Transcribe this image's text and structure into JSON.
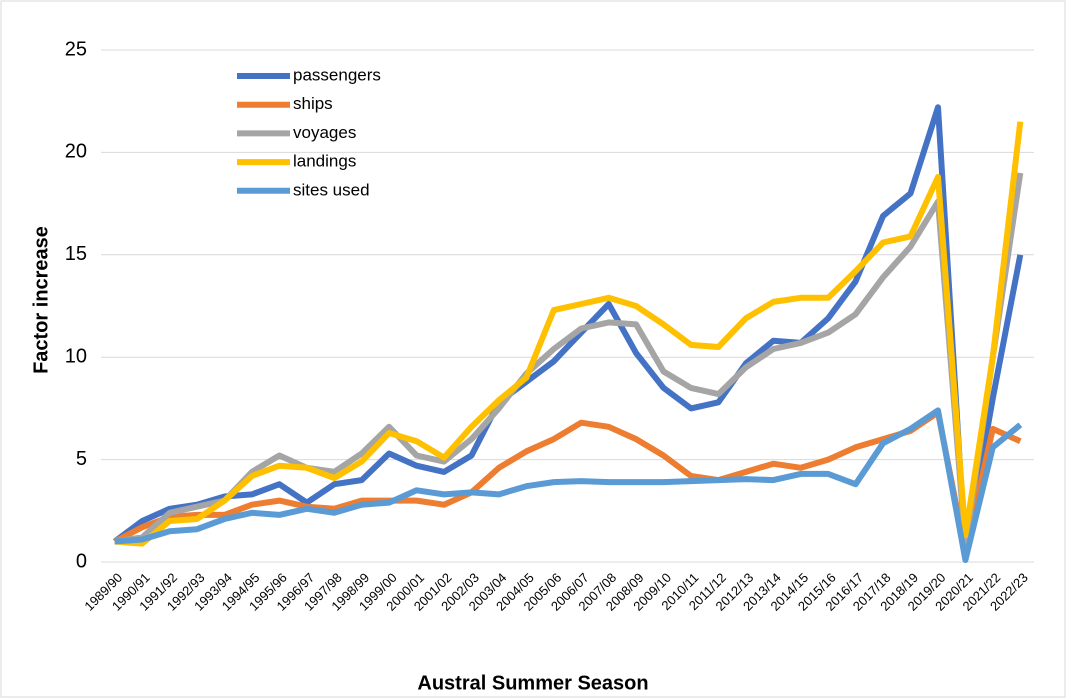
{
  "chart_data": {
    "type": "line",
    "x_label": "Austral Summer Season",
    "y_label": "Factor increase",
    "categories": [
      "1989/90",
      "1990/91",
      "1991/92",
      "1992/93",
      "1993/94",
      "1994/95",
      "1995/96",
      "1996/97",
      "1997/98",
      "1998/99",
      "1999/00",
      "2000/01",
      "2001/02",
      "2002/03",
      "2003/04",
      "2004/05",
      "2005/06",
      "2006/07",
      "2007/08",
      "2008/09",
      "2009/10",
      "2010/11",
      "2011/12",
      "2012/13",
      "2013/14",
      "2014/15",
      "2015/16",
      "2016/17",
      "2017/18",
      "2018/19",
      "2019/20",
      "2020/21",
      "2021/22",
      "2022/23"
    ],
    "series": [
      {
        "name": "passengers",
        "color": "#4472c4",
        "values": [
          1,
          2,
          2.6,
          2.8,
          3.2,
          3.3,
          3.8,
          2.9,
          3.8,
          4.0,
          5.3,
          4.7,
          4.4,
          5.2,
          7.8,
          8.8,
          9.8,
          11.2,
          12.6,
          10.2,
          8.5,
          7.5,
          7.8,
          9.7,
          10.8,
          10.7,
          11.9,
          13.7,
          16.9,
          18.0,
          22.2,
          0.4,
          8.0,
          15.0
        ]
      },
      {
        "name": "ships",
        "color": "#ed7d31",
        "values": [
          1,
          1.7,
          2.2,
          2.3,
          2.3,
          2.8,
          3.0,
          2.7,
          2.6,
          3.0,
          3.0,
          3.0,
          2.8,
          3.4,
          4.6,
          5.4,
          6.0,
          6.8,
          6.6,
          6.0,
          5.2,
          4.2,
          4.0,
          4.4,
          4.8,
          4.6,
          5.0,
          5.6,
          6.0,
          6.4,
          7.3,
          0.5,
          6.5,
          5.9
        ]
      },
      {
        "name": "voyages",
        "color": "#a5a5a5",
        "values": [
          1,
          1.2,
          2.4,
          2.7,
          3.0,
          4.4,
          5.2,
          4.6,
          4.4,
          5.3,
          6.6,
          5.2,
          4.9,
          6.0,
          7.5,
          9.2,
          10.4,
          11.4,
          11.7,
          11.6,
          9.3,
          8.5,
          8.2,
          9.5,
          10.4,
          10.7,
          11.2,
          12.1,
          13.9,
          15.4,
          17.6,
          0.8,
          10.0,
          19.0
        ]
      },
      {
        "name": "landings",
        "color": "#ffc000",
        "values": [
          1,
          0.9,
          2.0,
          2.1,
          3.0,
          4.2,
          4.7,
          4.6,
          4.1,
          4.9,
          6.3,
          5.9,
          5.1,
          6.6,
          7.9,
          9.0,
          12.3,
          12.6,
          12.9,
          12.5,
          11.6,
          10.6,
          10.5,
          11.9,
          12.7,
          12.9,
          12.9,
          14.2,
          15.6,
          15.9,
          18.8,
          1.3,
          10.0,
          21.5
        ]
      },
      {
        "name": "sites used",
        "color": "#5b9bd5",
        "values": [
          1,
          1.1,
          1.5,
          1.6,
          2.1,
          2.4,
          2.3,
          2.6,
          2.4,
          2.8,
          2.9,
          3.5,
          3.3,
          3.4,
          3.3,
          3.7,
          3.9,
          3.95,
          3.9,
          3.9,
          3.9,
          3.95,
          4.0,
          4.05,
          4.0,
          4.3,
          4.3,
          3.8,
          5.8,
          6.5,
          7.4,
          0.1,
          5.6,
          6.7
        ]
      }
    ],
    "ylim": [
      0,
      25
    ],
    "yticks": [
      0,
      5,
      10,
      15,
      20,
      25
    ],
    "grid": true
  }
}
